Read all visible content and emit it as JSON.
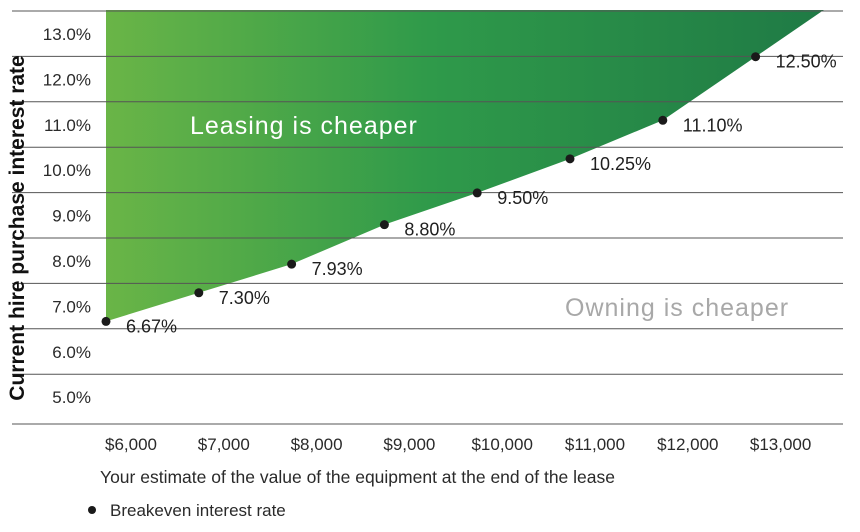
{
  "chart_data": {
    "type": "area",
    "title": "",
    "xlabel": "Your estimate of the value of the equipment at the end of the lease",
    "ylabel": "Current hire purchase interest rate",
    "x_ticks": [
      6000,
      7000,
      8000,
      9000,
      10000,
      11000,
      12000,
      13000
    ],
    "x_tick_labels": [
      "$6,000",
      "$7,000",
      "$8,000",
      "$9,000",
      "$10,000",
      "$11,000",
      "$12,000",
      "$13,000"
    ],
    "y_ticks": [
      5,
      6,
      7,
      8,
      9,
      10,
      11,
      12,
      13
    ],
    "y_tick_labels": [
      "5.0%",
      "6.0%",
      "7.0%",
      "8.0%",
      "9.0%",
      "10.0%",
      "11.0%",
      "12.0%",
      "13.0%"
    ],
    "xlim": [
      5000,
      14000
    ],
    "ylim": [
      4.5,
      13.5
    ],
    "grid": true,
    "series": [
      {
        "name": "Breakeven interest rate",
        "x": [
          6000,
          7000,
          8000,
          9000,
          10000,
          11000,
          12000,
          13000
        ],
        "values": [
          6.67,
          7.3,
          7.93,
          8.8,
          9.5,
          10.25,
          11.1,
          12.5
        ],
        "labels": [
          "6.67%",
          "7.30%",
          "7.93%",
          "8.80%",
          "9.50%",
          "10.25%",
          "11.10%",
          "12.50%"
        ]
      }
    ],
    "annotations": {
      "above": "Leasing is cheaper",
      "below": "Owning is cheaper"
    },
    "legend": {
      "position": "bottom-left",
      "label": "Breakeven interest rate"
    },
    "colors": {
      "area_start": "#6ab547",
      "area_end": "#1f7a45",
      "grid": "#555555",
      "point": "#1a1a1a",
      "above_text": "#ffffff",
      "below_text": "#a8a8a8"
    }
  }
}
